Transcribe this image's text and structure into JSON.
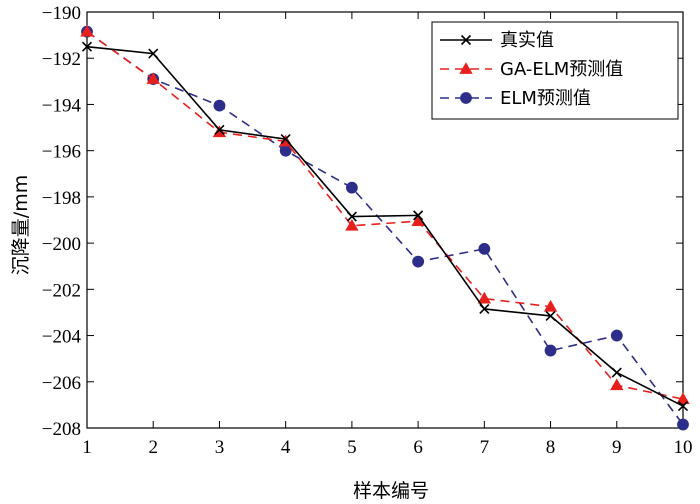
{
  "chart_data": {
    "type": "line",
    "title": "",
    "xlabel": "样本编号",
    "ylabel": "沉降量/mm",
    "x": [
      1,
      2,
      3,
      4,
      5,
      6,
      7,
      8,
      9,
      10
    ],
    "xlim": [
      1,
      10
    ],
    "ylim": [
      -208,
      -190
    ],
    "xticks": [
      "1",
      "2",
      "3",
      "4",
      "5",
      "6",
      "7",
      "8",
      "9",
      "10"
    ],
    "yticks": [
      -190,
      -192,
      -194,
      -196,
      -198,
      -200,
      -202,
      -204,
      -206,
      -208
    ],
    "grid": false,
    "legend_position": "top-right",
    "series": [
      {
        "name": "真实值",
        "color": "#000000",
        "line_style": "solid",
        "marker": "x",
        "values": [
          -191.5,
          -191.8,
          -195.1,
          -195.5,
          -198.85,
          -198.8,
          -202.85,
          -203.15,
          -205.6,
          -207.05
        ]
      },
      {
        "name": "GA-ELM预测值",
        "color": "#e8201d",
        "line_style": "dashed",
        "marker": "triangle",
        "values": [
          -190.85,
          -192.9,
          -195.2,
          -195.6,
          -199.25,
          -199.05,
          -202.4,
          -202.75,
          -206.15,
          -206.75
        ]
      },
      {
        "name": "ELM预测值",
        "color": "#2d2d8a",
        "line_style": "dashed",
        "marker": "circle",
        "values": [
          -190.85,
          -192.9,
          -194.05,
          -196.0,
          -197.6,
          -200.8,
          -200.25,
          -204.65,
          -204.0,
          -207.85
        ]
      }
    ]
  }
}
